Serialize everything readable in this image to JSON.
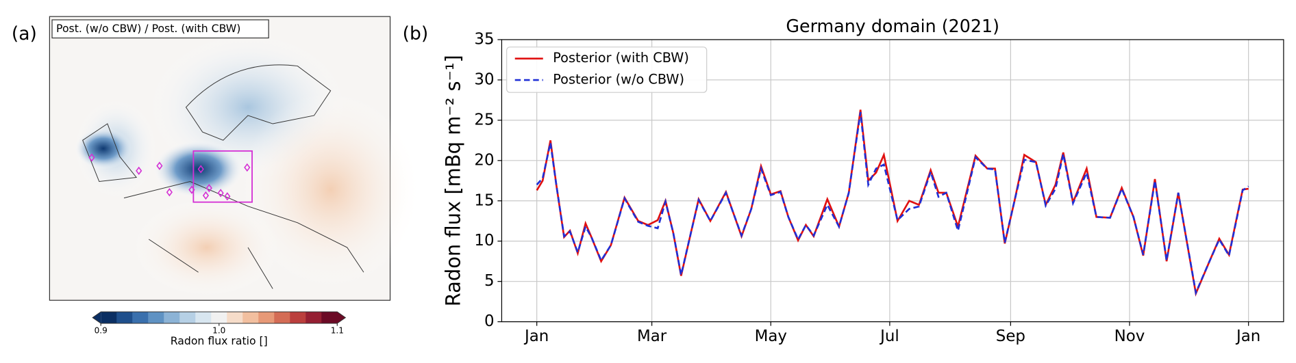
{
  "chart_data": [
    {
      "type": "map",
      "panel_label": "(a)",
      "title": "Post. (w/o CBW) / Post. (with CBW)",
      "colorbar": {
        "label": "Radon flux ratio []",
        "clim": [
          0.9,
          1.1
        ],
        "ticks": [
          0.9,
          {
            "value": 1,
            "label": "1.0"
          },
          1.1
        ],
        "colors": [
          "#0b2f63",
          "#1f4f8c",
          "#3a70ad",
          "#5f92c3",
          "#8cb3d6",
          "#b6d0e5",
          "#d8e6f0",
          "#f1f1f1",
          "#f6dcc9",
          "#f2bf9f",
          "#e79977",
          "#d46c55",
          "#bb3f3d",
          "#951f32",
          "#6b0a25"
        ]
      }
    },
    {
      "type": "line",
      "panel_label": "(b)",
      "title": "Germany domain (2021)",
      "y_label": "Radon flux [mBq m⁻² s⁻¹]",
      "x": [
        0,
        3,
        7,
        10,
        14,
        17,
        21,
        25,
        28,
        33,
        38,
        45,
        52,
        57,
        62,
        66,
        70,
        74,
        79,
        83,
        89,
        97,
        105,
        110,
        115,
        120,
        125,
        129,
        134,
        138,
        142,
        149,
        155,
        160,
        166,
        170,
        174,
        178,
        185,
        191,
        196,
        202,
        206,
        210,
        216,
        225,
        231,
        235,
        240,
        245,
        250,
        256,
        261,
        266,
        270,
        275,
        282,
        287,
        294,
        300,
        306,
        311,
        317,
        323,
        329,
        338,
        345,
        350,
        355,
        362,
        365
      ],
      "series": [
        {
          "name": "Posterior (with CBW)",
          "color": "#e01010",
          "dash": false,
          "values": [
            16.3,
            17.5,
            22.5,
            17,
            10.5,
            11.3,
            8.5,
            12.2,
            10.5,
            7.5,
            9.5,
            15.4,
            12.5,
            12.0,
            12.6,
            15.0,
            11,
            5.7,
            11,
            15.2,
            12.5,
            16.1,
            10.6,
            14,
            19.3,
            15.8,
            16.2,
            13,
            10.1,
            12,
            10.6,
            15.2,
            11.8,
            16,
            26.3,
            17.5,
            18.5,
            20.7,
            12.5,
            15,
            14.5,
            18.8,
            16,
            16,
            11.8,
            20.6,
            19,
            19,
            9.7,
            15,
            20.7,
            19.8,
            14.5,
            17,
            21,
            14.8,
            19,
            13,
            12.9,
            16.6,
            13,
            8.2,
            17.7,
            7.5,
            16,
            3.5,
            7.5,
            10.3,
            8.3,
            16.4,
            16.5
          ]
        },
        {
          "name": "Posterior (w/o CBW)",
          "color": "#1f2fd6",
          "dash": true,
          "values": [
            17,
            17.8,
            22.2,
            17,
            10.6,
            11.2,
            8.6,
            11.8,
            10.5,
            7.6,
            9.5,
            15.3,
            12.4,
            11.9,
            11.6,
            14.9,
            11,
            5.8,
            11,
            15.1,
            12.5,
            16,
            10.7,
            14,
            19,
            15.7,
            16.1,
            13,
            10.2,
            12,
            10.7,
            14.5,
            11.8,
            16,
            26,
            17,
            19,
            19.5,
            12.6,
            14,
            14.3,
            18.6,
            15.5,
            16,
            11.3,
            20.4,
            19,
            18.9,
            9.8,
            15,
            20.1,
            19.8,
            14.4,
            16.5,
            20.8,
            14.7,
            18.5,
            13,
            12.9,
            16.5,
            13,
            8.3,
            17.5,
            7.6,
            16,
            3.6,
            7.5,
            10.2,
            8.2,
            16.3,
            16.8
          ]
        }
      ],
      "xlim": [
        -18,
        383
      ],
      "xticks": [
        {
          "value": 0,
          "label": "Jan"
        },
        {
          "value": 59,
          "label": "Mar"
        },
        {
          "value": 120,
          "label": "May"
        },
        {
          "value": 181,
          "label": "Jul"
        },
        {
          "value": 243,
          "label": "Sep"
        },
        {
          "value": 304,
          "label": "Nov"
        },
        {
          "value": 365,
          "label": "Jan"
        }
      ],
      "ylim": [
        0,
        35
      ],
      "yticks": [
        0,
        5,
        10,
        15,
        20,
        25,
        30,
        35
      ],
      "grid": true,
      "legend": "upper left"
    }
  ]
}
